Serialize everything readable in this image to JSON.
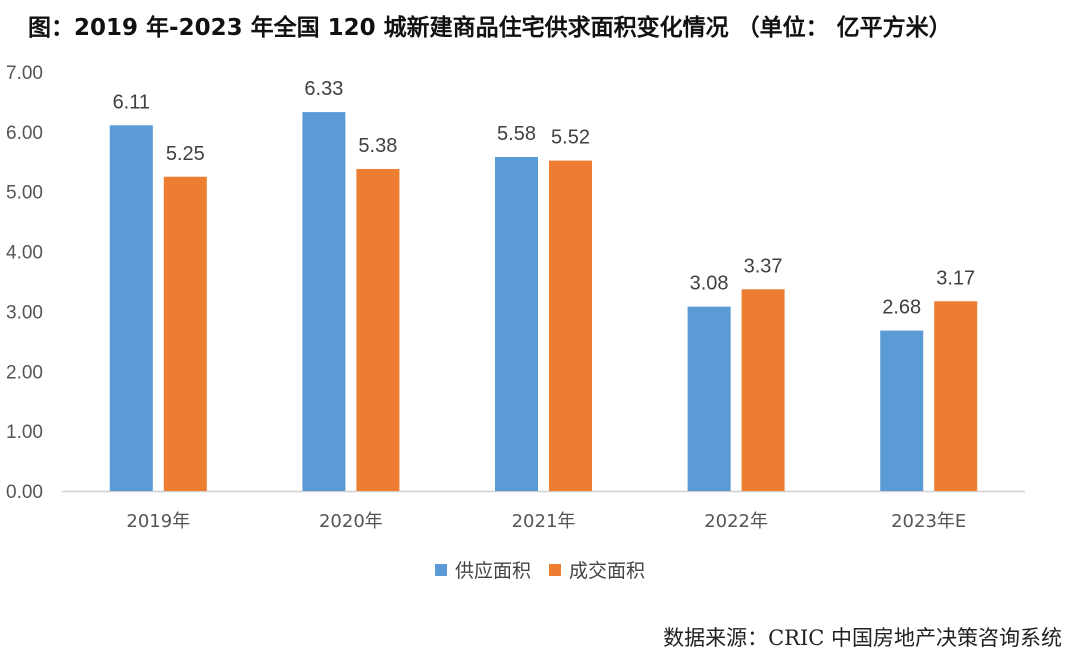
{
  "chart_data": {
    "type": "bar",
    "title": "图：2019 年-2023 年全国 120 城新建商品住宅供求面积变化情况 （单位： 亿平方米）",
    "categories": [
      "2019年",
      "2020年",
      "2021年",
      "2022年",
      "2023年E"
    ],
    "series": [
      {
        "name": "供应面积",
        "color": "#5B9BD5",
        "values": [
          6.11,
          6.33,
          5.58,
          3.08,
          2.68
        ]
      },
      {
        "name": "成交面积",
        "color": "#ED7D31",
        "values": [
          5.25,
          5.38,
          5.52,
          3.37,
          3.17
        ]
      }
    ],
    "ylim": [
      0,
      7
    ],
    "yticks": [
      "0.00",
      "1.00",
      "2.00",
      "3.00",
      "4.00",
      "5.00",
      "6.00",
      "7.00"
    ],
    "legend_position": "bottom",
    "grid": false,
    "xlabel": "",
    "ylabel": ""
  },
  "source": "数据来源：CRIC 中国房地产决策咨询系统"
}
